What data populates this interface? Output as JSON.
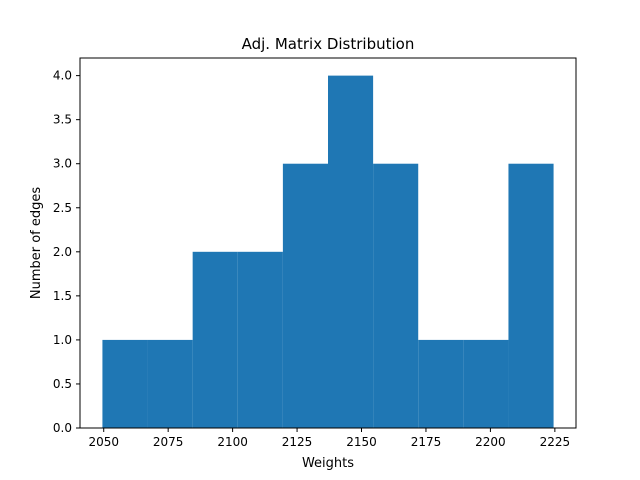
{
  "chart_data": {
    "type": "bar",
    "subtype": "histogram",
    "title": "Adj. Matrix Distribution",
    "xlabel": "Weights",
    "ylabel": "Number of edges",
    "bins": [
      {
        "x0": 2049.5,
        "x1": 2067.0,
        "count": 1
      },
      {
        "x0": 2067.0,
        "x1": 2084.5,
        "count": 1
      },
      {
        "x0": 2084.5,
        "x1": 2102.0,
        "count": 2
      },
      {
        "x0": 2102.0,
        "x1": 2119.5,
        "count": 2
      },
      {
        "x0": 2119.5,
        "x1": 2137.0,
        "count": 3
      },
      {
        "x0": 2137.0,
        "x1": 2154.5,
        "count": 4
      },
      {
        "x0": 2154.5,
        "x1": 2172.0,
        "count": 3
      },
      {
        "x0": 2172.0,
        "x1": 2189.5,
        "count": 1
      },
      {
        "x0": 2189.5,
        "x1": 2207.0,
        "count": 1
      },
      {
        "x0": 2207.0,
        "x1": 2224.5,
        "count": 3
      }
    ],
    "xlim": [
      2040.8,
      2233.2
    ],
    "ylim": [
      0,
      4.2
    ],
    "xticks": [
      "2050",
      "2075",
      "2100",
      "2125",
      "2150",
      "2175",
      "2200",
      "2225"
    ],
    "yticks": [
      "0.0",
      "0.5",
      "1.0",
      "1.5",
      "2.0",
      "2.5",
      "3.0",
      "3.5",
      "4.0"
    ],
    "bar_color": "#1f77b4",
    "grid": false,
    "legend": "none"
  }
}
